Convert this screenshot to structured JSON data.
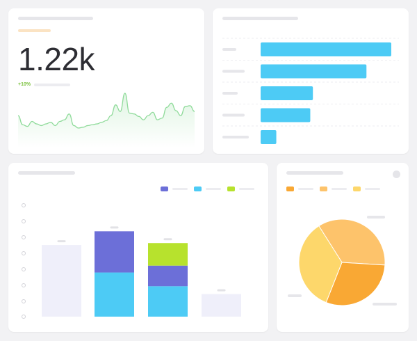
{
  "kpi": {
    "value": "1.22k",
    "delta": "+10%",
    "accent_color": "#fbe3c3",
    "sparkline_color": "#8fdb9a",
    "sparkline_values": [
      45,
      34,
      32,
      38,
      35,
      33,
      35,
      37,
      33,
      38,
      40,
      47,
      33,
      30,
      31,
      33,
      34,
      35,
      37,
      39,
      45,
      58,
      50,
      72,
      48,
      47,
      44,
      40,
      45,
      49,
      40,
      42,
      55,
      60,
      51,
      45,
      56,
      57,
      50
    ]
  },
  "hbar": {
    "color": "#4dcbf5",
    "values": [
      100,
      81,
      40,
      38,
      12
    ]
  },
  "stacked": {
    "series_colors": [
      "#6c6fd8",
      "#4dcbf5",
      "#b7e22d"
    ],
    "base_color": "#efeffa",
    "columns": [
      {
        "total": 73,
        "segments": []
      },
      {
        "total": 87,
        "segments": [
          {
            "color": "#4dcbf5",
            "value": 45
          },
          {
            "color": "#6c6fd8",
            "value": 42
          }
        ]
      },
      {
        "total": 75,
        "segments": [
          {
            "color": "#4dcbf5",
            "value": 31
          },
          {
            "color": "#6c6fd8",
            "value": 21
          },
          {
            "color": "#b7e22d",
            "value": 23
          }
        ]
      },
      {
        "total": 23,
        "segments": []
      }
    ]
  },
  "pie": {
    "legend_colors": [
      "#f9a834",
      "#fdc36b",
      "#fdd76b"
    ],
    "slices": [
      {
        "color": "#fdc36b",
        "value": 35
      },
      {
        "color": "#f9a834",
        "value": 30
      },
      {
        "color": "#fdd76b",
        "value": 35
      }
    ]
  }
}
